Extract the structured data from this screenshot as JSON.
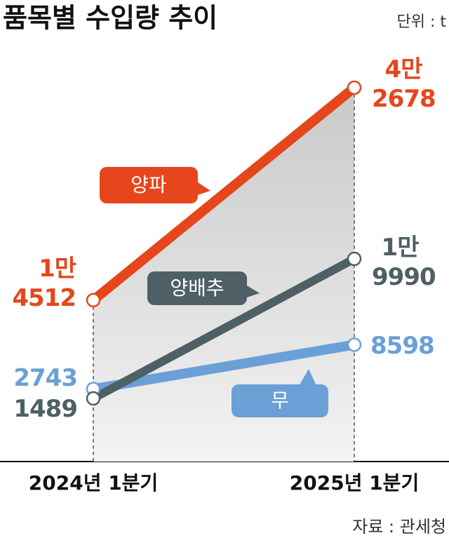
{
  "chart_data": {
    "type": "line",
    "title": "품목별 수입량 추이",
    "unit_note": "단위 : t",
    "source": "자료 : 관세청",
    "categories": [
      "2024년 1분기",
      "2025년 1분기"
    ],
    "series": [
      {
        "name": "양파",
        "color": "#e6461b",
        "values": [
          14512,
          42678
        ],
        "value_labels": [
          "1만\n4512",
          "4만\n2678"
        ]
      },
      {
        "name": "양배추",
        "color": "#4e5f66",
        "values": [
          1489,
          19990
        ],
        "value_labels": [
          "1489",
          "1만\n9990"
        ]
      },
      {
        "name": "무",
        "color": "#6aa0d6",
        "values": [
          2743,
          8598
        ],
        "value_labels": [
          "2743",
          "8598"
        ]
      }
    ]
  }
}
